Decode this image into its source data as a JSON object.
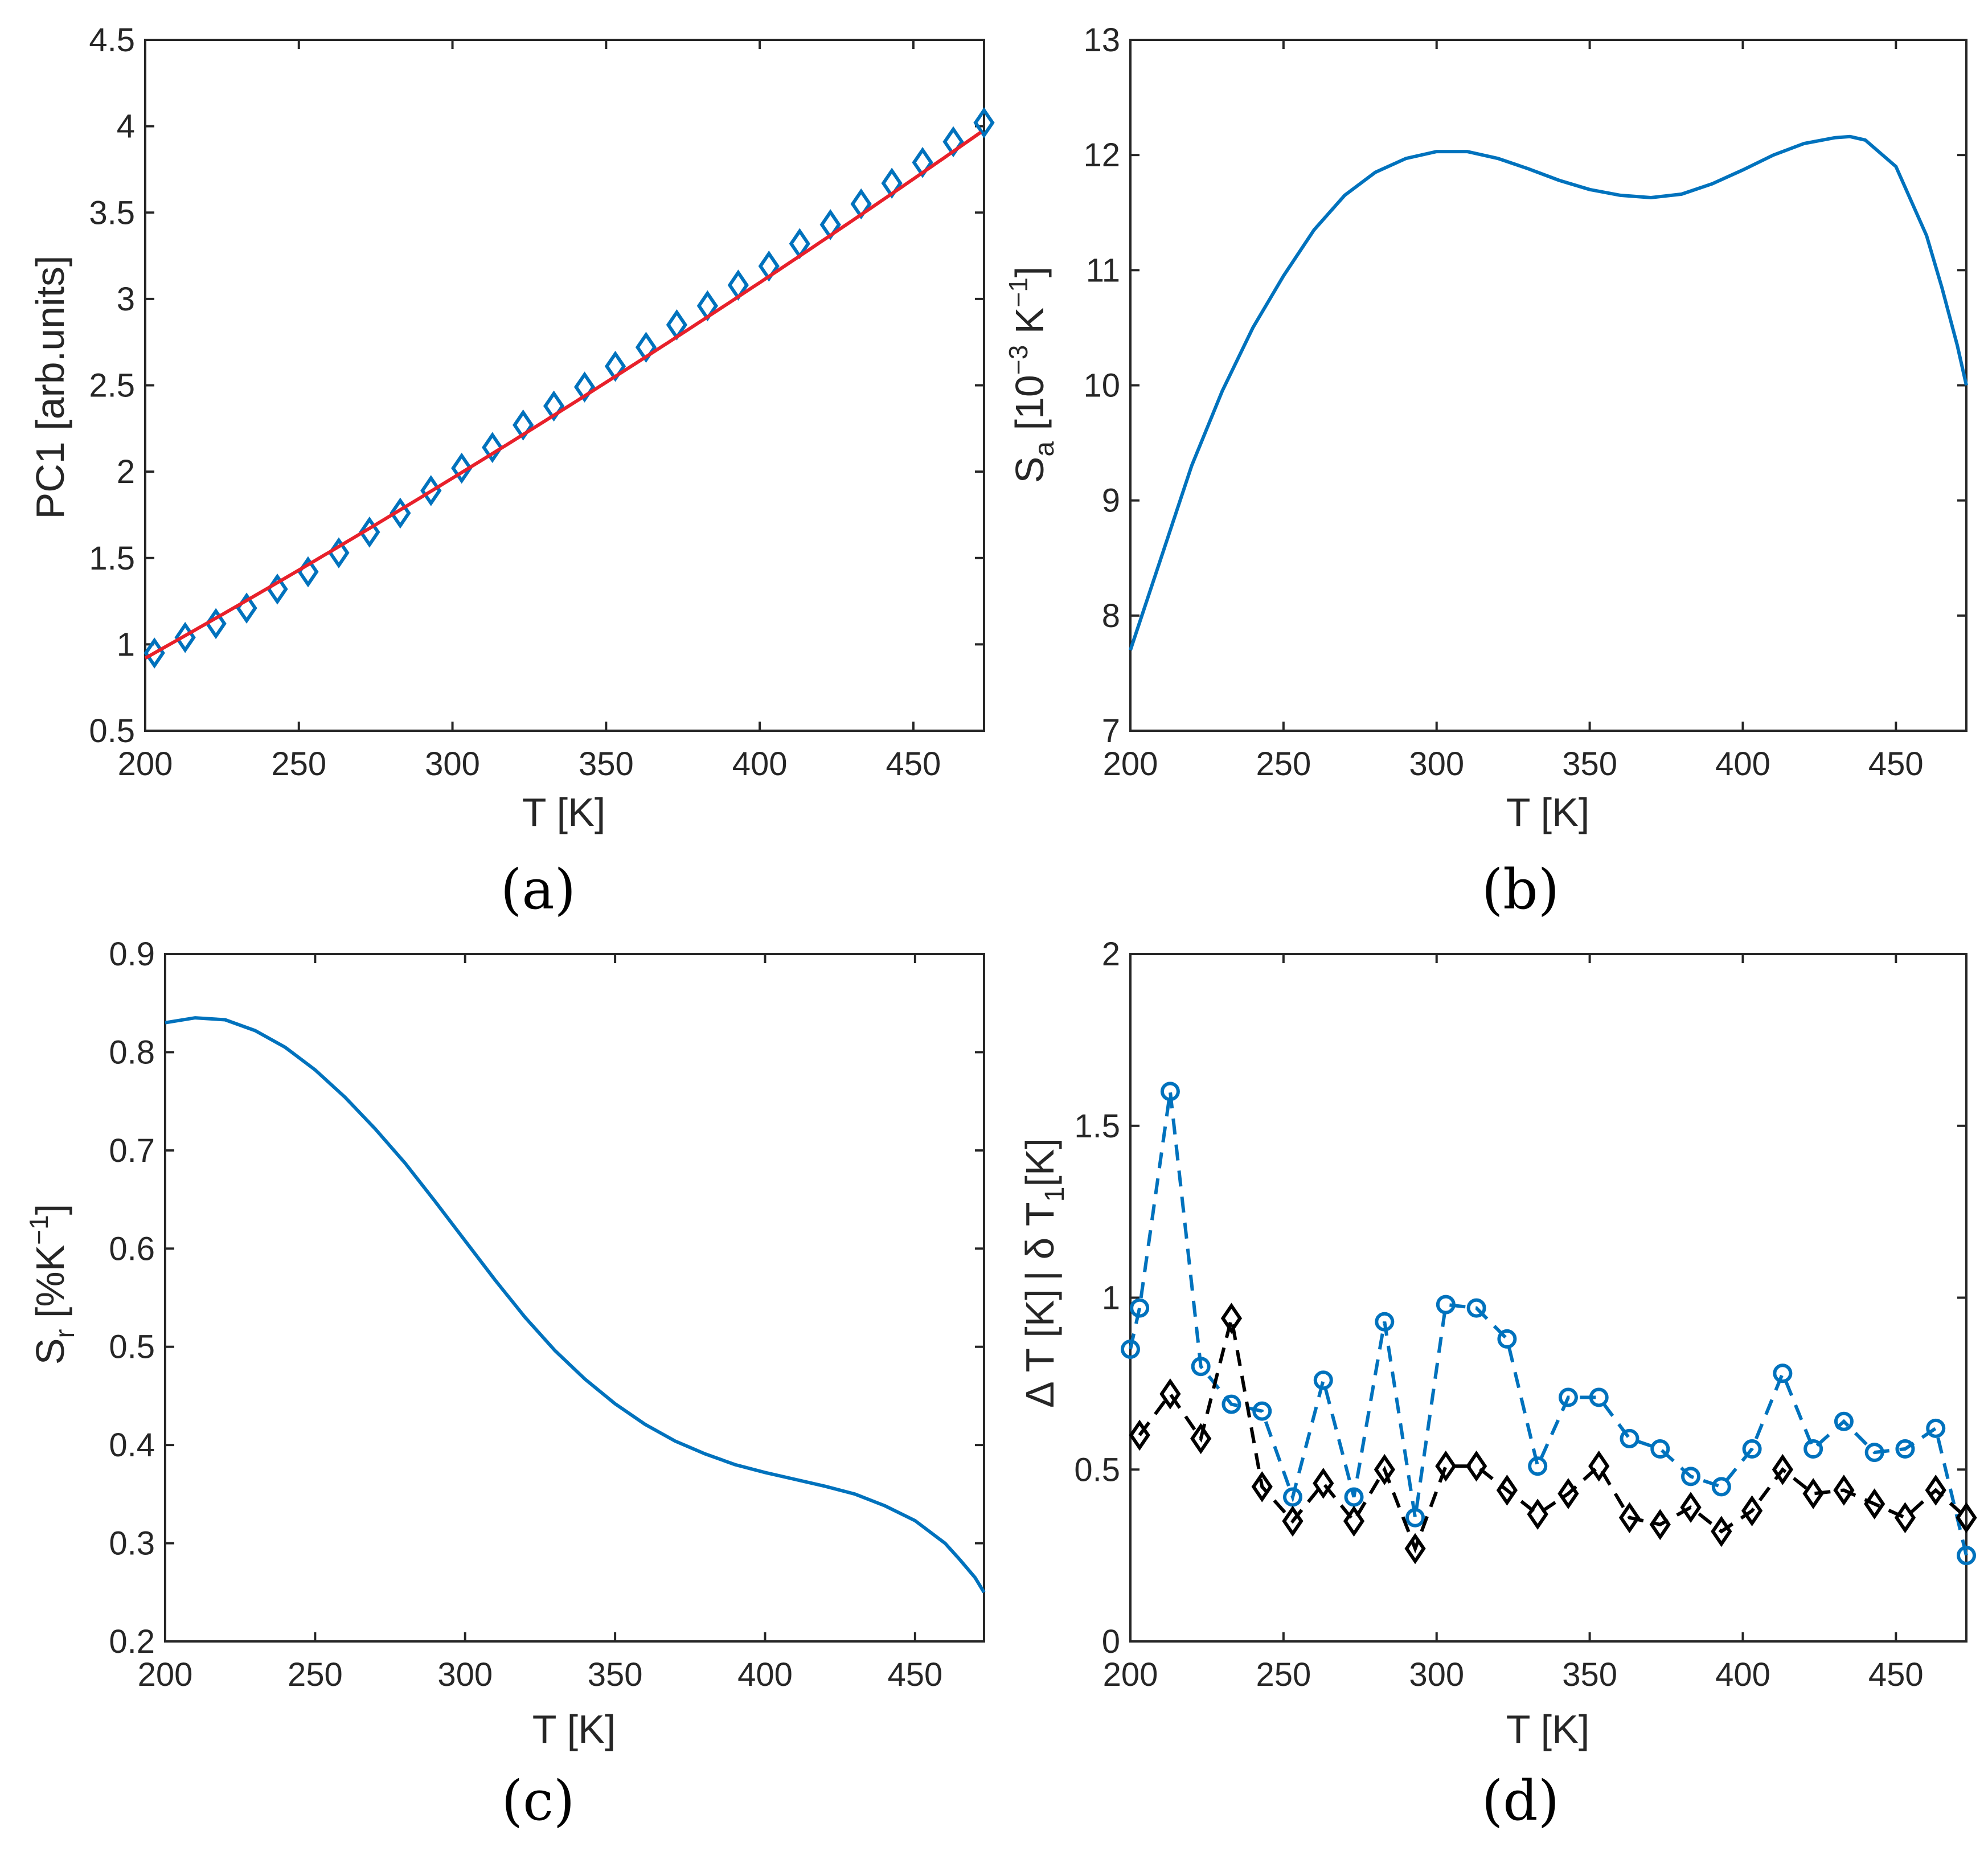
{
  "colors": {
    "series_blue": "#0072BD",
    "fit_red": "#E8202A",
    "series_black": "#000000",
    "axes": "#262626"
  },
  "chart_data": [
    {
      "id": "a",
      "type": "scatter",
      "caption": "(a)",
      "xlabel": "T [K]",
      "ylabel": "PC1 [arb.units]",
      "xlim": [
        200,
        473
      ],
      "ylim": [
        0.5,
        4.5
      ],
      "xticks": [
        "200",
        "250",
        "300",
        "350",
        "400",
        "450"
      ],
      "yticks": [
        "0.5",
        "1",
        "1.5",
        "2",
        "2.5",
        "3",
        "3.5",
        "4",
        "4.5"
      ],
      "grid": false,
      "series": [
        {
          "marker": "diamond",
          "x": [
            203,
            213,
            223,
            233,
            243,
            253,
            263,
            273,
            283,
            293,
            303,
            313,
            323,
            333,
            343,
            353,
            363,
            373,
            383,
            393,
            403,
            413,
            423,
            433,
            443,
            453,
            463,
            473
          ],
          "y": [
            0.95,
            1.04,
            1.12,
            1.21,
            1.32,
            1.42,
            1.53,
            1.65,
            1.76,
            1.89,
            2.02,
            2.14,
            2.27,
            2.38,
            2.49,
            2.61,
            2.72,
            2.85,
            2.96,
            3.08,
            3.19,
            3.32,
            3.43,
            3.55,
            3.67,
            3.79,
            3.91,
            4.02
          ]
        },
        {
          "line": "solid",
          "x": [
            200,
            473
          ],
          "fit_coeffs": [
            0.95,
            0.01,
            4.5e-06
          ],
          "fit_origin": 203
        }
      ]
    },
    {
      "id": "b",
      "type": "line",
      "caption": "(b)",
      "xlabel": "T [K]",
      "ylabel_base": "S",
      "ylabel_sub": "a",
      "ylabel_unit_pre": " [10",
      "ylabel_sup1": "−3",
      "ylabel_unit_mid": " K",
      "ylabel_sup2": "−1",
      "ylabel_unit_post": "]",
      "xlim": [
        200,
        473
      ],
      "ylim": [
        7,
        13
      ],
      "xticks": [
        "200",
        "250",
        "300",
        "350",
        "400",
        "450"
      ],
      "yticks": [
        "7",
        "8",
        "9",
        "10",
        "11",
        "12",
        "13"
      ],
      "grid": false,
      "series": [
        {
          "x": [
            200,
            210,
            220,
            230,
            240,
            250,
            260,
            270,
            280,
            290,
            300,
            310,
            320,
            330,
            340,
            350,
            360,
            370,
            380,
            390,
            400,
            410,
            420,
            430,
            435,
            440,
            450,
            460,
            465,
            470,
            473
          ],
          "y": [
            7.7,
            8.5,
            9.3,
            9.95,
            10.5,
            10.95,
            11.35,
            11.65,
            11.85,
            11.97,
            12.03,
            12.03,
            11.97,
            11.88,
            11.78,
            11.7,
            11.65,
            11.63,
            11.66,
            11.75,
            11.87,
            12.0,
            12.1,
            12.15,
            12.16,
            12.13,
            11.9,
            11.3,
            10.85,
            10.35,
            10.0
          ]
        }
      ]
    },
    {
      "id": "c",
      "type": "line",
      "caption": "(c)",
      "xlabel": "T [K]",
      "ylabel_base": "S",
      "ylabel_sub": "r",
      "ylabel_unit_pre": " [%K",
      "ylabel_sup1": "−1",
      "ylabel_unit_post": "]",
      "xlim": [
        200,
        473
      ],
      "ylim": [
        0.2,
        0.9
      ],
      "xticks": [
        "200",
        "250",
        "300",
        "350",
        "400",
        "450"
      ],
      "yticks": [
        "0.2",
        "0.3",
        "0.4",
        "0.5",
        "0.6",
        "0.7",
        "0.8",
        "0.9"
      ],
      "grid": false,
      "series": [
        {
          "x": [
            200,
            210,
            220,
            230,
            240,
            250,
            260,
            270,
            280,
            290,
            300,
            310,
            320,
            330,
            340,
            350,
            360,
            370,
            380,
            390,
            400,
            410,
            420,
            430,
            440,
            450,
            460,
            465,
            470,
            473
          ],
          "y": [
            0.83,
            0.835,
            0.833,
            0.822,
            0.805,
            0.782,
            0.754,
            0.722,
            0.687,
            0.648,
            0.608,
            0.568,
            0.53,
            0.496,
            0.467,
            0.442,
            0.421,
            0.404,
            0.391,
            0.38,
            0.372,
            0.365,
            0.358,
            0.35,
            0.338,
            0.323,
            0.3,
            0.283,
            0.265,
            0.25
          ]
        }
      ]
    },
    {
      "id": "d",
      "type": "line",
      "caption": "(d)",
      "xlabel": "T [K]",
      "ylabel_part1": "Δ T [K]",
      "ylabel_part2": "| δ T",
      "ylabel_part2_sub": "1",
      "ylabel_part3": "[K]",
      "xlim": [
        200,
        473
      ],
      "ylim": [
        0,
        2
      ],
      "xticks": [
        "200",
        "250",
        "300",
        "350",
        "400",
        "450"
      ],
      "yticks": [
        "0",
        "0.5",
        "1",
        "1.5",
        "2"
      ],
      "grid": false,
      "series": [
        {
          "marker": "circle",
          "line": "dashed",
          "color_key": "series_blue",
          "x": [
            200,
            203,
            213,
            223,
            233,
            243,
            253,
            263,
            273,
            283,
            293,
            303,
            313,
            323,
            333,
            343,
            353,
            363,
            373,
            383,
            393,
            403,
            413,
            423,
            433,
            443,
            453,
            463,
            473
          ],
          "y": [
            0.85,
            0.97,
            1.6,
            0.8,
            0.69,
            0.67,
            0.42,
            0.76,
            0.42,
            0.93,
            0.36,
            0.98,
            0.97,
            0.88,
            0.51,
            0.71,
            0.71,
            0.59,
            0.56,
            0.48,
            0.45,
            0.56,
            0.78,
            0.56,
            0.64,
            0.55,
            0.56,
            0.62,
            0.25
          ]
        },
        {
          "marker": "diamond",
          "line": "dashed",
          "color_key": "series_black",
          "x": [
            203,
            213,
            223,
            233,
            243,
            253,
            263,
            273,
            283,
            293,
            303,
            313,
            323,
            333,
            343,
            353,
            363,
            373,
            383,
            393,
            403,
            413,
            423,
            433,
            443,
            453,
            463,
            473
          ],
          "y": [
            0.6,
            0.72,
            0.59,
            0.94,
            0.45,
            0.35,
            0.46,
            0.35,
            0.5,
            0.27,
            0.51,
            0.51,
            0.44,
            0.37,
            0.43,
            0.51,
            0.36,
            0.34,
            0.39,
            0.32,
            0.38,
            0.5,
            0.43,
            0.44,
            0.4,
            0.36,
            0.44,
            0.36
          ]
        }
      ]
    }
  ]
}
